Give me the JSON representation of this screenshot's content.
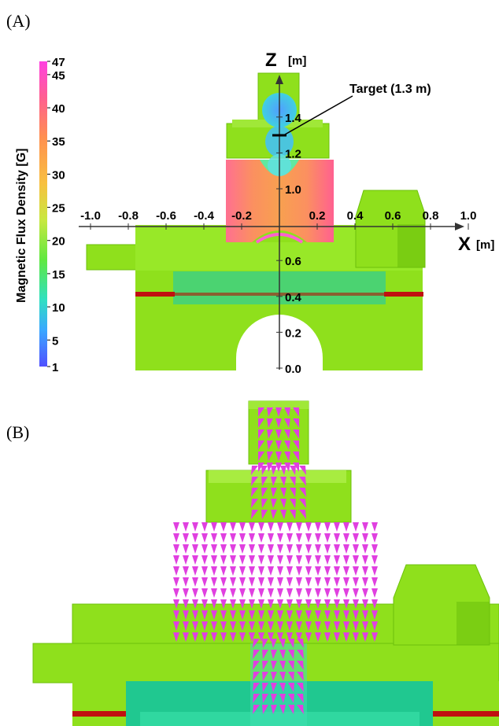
{
  "panels": {
    "a_label": "(A)",
    "b_label": "(B)"
  },
  "colorbar": {
    "title": "Magnetic Flux Density [G]",
    "ticks": [
      "47",
      "45",
      "40",
      "35",
      "30",
      "25",
      "20",
      "15",
      "10",
      "5",
      "1"
    ],
    "tick_values": [
      47,
      45,
      40,
      35,
      30,
      25,
      20,
      15,
      10,
      5,
      1
    ]
  },
  "axes": {
    "z_label": "Z",
    "z_unit": "[m]",
    "x_label": "X",
    "x_unit": "[m]",
    "x_ticks": [
      "-1.0",
      "-0.8",
      "-0.6",
      "-0.4",
      "-0.2",
      "0.2",
      "0.4",
      "0.6",
      "0.8",
      "1.0"
    ],
    "z_ticks": [
      "1.4",
      "1.2",
      "1.0",
      "0.6",
      "0.4",
      "0.2",
      "0.0"
    ]
  },
  "annotation": {
    "target_label": "Target (1.3 m)"
  },
  "colors": {
    "shield_green": "#8fe01c",
    "shield_dark": "#6cc00c",
    "rail_red": "#c01010",
    "arrow_magenta": "#e040e0",
    "teal": "#2ed08a"
  }
}
